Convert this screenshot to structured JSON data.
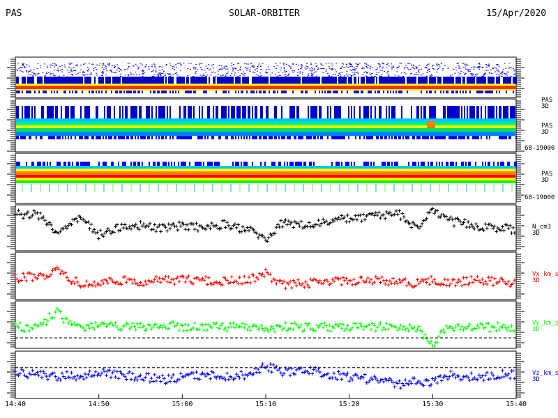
{
  "header": {
    "instrument": "PAS",
    "mission": "SOLAR-ORBITER",
    "date": "15/Apr/2020"
  },
  "chart_data": [
    {
      "type": "heatmap",
      "panel": "spectrogram-1",
      "labels": [],
      "x": [
        "14:40",
        "15:40"
      ],
      "colors": [
        "#0000ff",
        "#00c8ff",
        "#00ff00",
        "#ffff00",
        "#ff8000",
        "#ff0000"
      ]
    },
    {
      "type": "heatmap",
      "panel": "spectrogram-2",
      "labels": [
        "PAS",
        "3D",
        "PAS",
        "3D",
        "68-19000"
      ],
      "x": [
        "14:40",
        "15:40"
      ]
    },
    {
      "type": "heatmap",
      "panel": "spectrogram-3",
      "labels": [
        "PAS",
        "3D",
        "68-19000"
      ],
      "x": [
        "14:40",
        "15:40"
      ]
    },
    {
      "type": "scatter",
      "panel": "density",
      "labels": [
        "N_cm3",
        "3D"
      ],
      "color": "#000000",
      "x": [
        "14:40",
        "14:43",
        "14:45",
        "14:46",
        "14:48",
        "14:50",
        "14:52",
        "14:55",
        "14:58",
        "15:00",
        "15:03",
        "15:05",
        "15:08",
        "15:10",
        "15:12",
        "15:15",
        "15:18",
        "15:20",
        "15:23",
        "15:26",
        "15:28",
        "15:30",
        "15:32",
        "15:35",
        "15:38",
        "15:40"
      ],
      "y": [
        0.8,
        0.78,
        0.4,
        0.55,
        0.7,
        0.35,
        0.5,
        0.55,
        0.48,
        0.55,
        0.5,
        0.58,
        0.45,
        0.25,
        0.6,
        0.55,
        0.65,
        0.7,
        0.75,
        0.8,
        0.5,
        0.85,
        0.65,
        0.55,
        0.5,
        0.45
      ]
    },
    {
      "type": "scatter",
      "panel": "velocity-x",
      "labels": [
        "Vx_km_s",
        "3D"
      ],
      "color": "#ff0000",
      "x": [
        "14:40",
        "14:43",
        "14:45",
        "14:46",
        "14:48",
        "14:50",
        "14:52",
        "14:55",
        "14:58",
        "15:00",
        "15:03",
        "15:05",
        "15:08",
        "15:10",
        "15:12",
        "15:15",
        "15:18",
        "15:20",
        "15:23",
        "15:26",
        "15:28",
        "15:30",
        "15:32",
        "15:35",
        "15:38",
        "15:40"
      ],
      "y": [
        0.45,
        0.5,
        0.6,
        0.5,
        0.3,
        0.35,
        0.4,
        0.38,
        0.4,
        0.42,
        0.4,
        0.38,
        0.42,
        0.55,
        0.3,
        0.35,
        0.38,
        0.4,
        0.4,
        0.38,
        0.35,
        0.4,
        0.35,
        0.4,
        0.38,
        0.35
      ]
    },
    {
      "type": "scatter",
      "panel": "velocity-y",
      "labels": [
        "Vy_km_s",
        "3D"
      ],
      "color": "#00ff00",
      "x": [
        "14:40",
        "14:43",
        "14:45",
        "14:46",
        "14:48",
        "14:50",
        "14:52",
        "14:55",
        "14:58",
        "15:00",
        "15:03",
        "15:05",
        "15:08",
        "15:10",
        "15:12",
        "15:15",
        "15:18",
        "15:20",
        "15:23",
        "15:26",
        "15:28",
        "15:30",
        "15:32",
        "15:35",
        "15:38",
        "15:40"
      ],
      "y": [
        0.45,
        0.45,
        0.8,
        0.55,
        0.45,
        0.48,
        0.45,
        0.45,
        0.48,
        0.45,
        0.45,
        0.45,
        0.45,
        0.4,
        0.45,
        0.45,
        0.45,
        0.45,
        0.45,
        0.45,
        0.45,
        0.1,
        0.45,
        0.45,
        0.45,
        0.45
      ]
    },
    {
      "type": "scatter",
      "panel": "velocity-z",
      "labels": [
        "Vz_km_s",
        "3D"
      ],
      "color": "#0000ff",
      "x": [
        "14:40",
        "14:43",
        "14:45",
        "14:46",
        "14:48",
        "14:50",
        "14:52",
        "14:55",
        "14:58",
        "15:00",
        "15:03",
        "15:05",
        "15:08",
        "15:10",
        "15:12",
        "15:15",
        "15:18",
        "15:20",
        "15:23",
        "15:26",
        "15:28",
        "15:30",
        "15:32",
        "15:35",
        "15:38",
        "15:40"
      ],
      "y": [
        0.55,
        0.5,
        0.45,
        0.5,
        0.45,
        0.55,
        0.5,
        0.45,
        0.4,
        0.45,
        0.5,
        0.45,
        0.5,
        0.7,
        0.55,
        0.6,
        0.5,
        0.45,
        0.4,
        0.3,
        0.35,
        0.35,
        0.5,
        0.45,
        0.5,
        0.5
      ]
    }
  ],
  "xaxis": {
    "ticks": [
      "14:40",
      "14:50",
      "15:00",
      "15:10",
      "15:20",
      "15:30",
      "15:40"
    ]
  }
}
